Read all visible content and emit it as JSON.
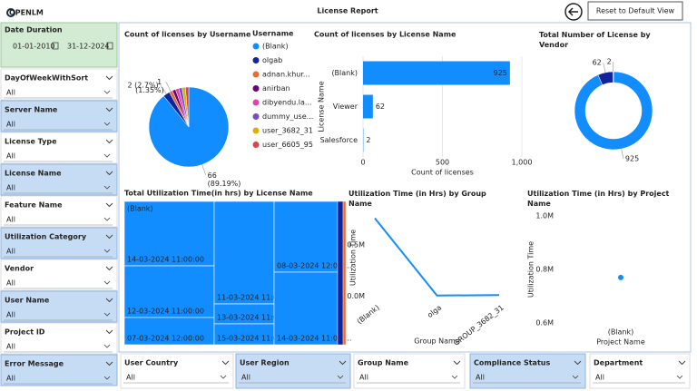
{
  "header": {
    "logo": "OPENLM",
    "title": "License Report",
    "button": "Reset to Default View"
  },
  "date_filter": {
    "title": "Date Duration",
    "from": "01-01-2010",
    "to": "31-12-2024"
  },
  "filters": [
    {
      "title": "DayOfWeekWithSort",
      "value": "All",
      "highlight": false
    },
    {
      "title": "Server Name",
      "value": "All",
      "highlight": true
    },
    {
      "title": "License Type",
      "value": "All",
      "highlight": false
    },
    {
      "title": "License Name",
      "value": "All",
      "highlight": true
    },
    {
      "title": "Feature Name",
      "value": "All",
      "highlight": false
    },
    {
      "title": "Utilization Category",
      "value": "All",
      "highlight": true
    },
    {
      "title": "Vendor",
      "value": "All",
      "highlight": false
    },
    {
      "title": "User Name",
      "value": "All",
      "highlight": true
    },
    {
      "title": "Project ID",
      "value": "All",
      "highlight": false
    },
    {
      "title": "Error Message",
      "value": "All",
      "highlight": true
    }
  ],
  "bottom_filters": [
    {
      "title": "User Country",
      "value": "All",
      "highlight": false
    },
    {
      "title": "User Region",
      "value": "All",
      "highlight": true
    },
    {
      "title": "Group Name",
      "value": "All",
      "highlight": false
    },
    {
      "title": "Compliance Status",
      "value": "All",
      "highlight": true
    },
    {
      "title": "Department",
      "value": "All",
      "highlight": false
    }
  ],
  "chart_data": [
    {
      "type": "pie",
      "title": "Count of licenses by Username",
      "legend_title": "Username",
      "categories": [
        "(Blank)",
        "olgab",
        "adnan.khur...",
        "anirban",
        "dibyendu.la...",
        "dummy_use...",
        "user_3682_31",
        "user_6605_95"
      ],
      "values": [
        66,
        2,
        1,
        1,
        1,
        1,
        1,
        1
      ],
      "value_labels": [
        "66 (89.19%)",
        "2 (2.7%)",
        "1 (1.35%)",
        null,
        null,
        null,
        null,
        null
      ],
      "colors": [
        "#118DFF",
        "#12239E",
        "#E66C37",
        "#6B007B",
        "#E044A7",
        "#744EC2",
        "#D9B300",
        "#D64550"
      ]
    },
    {
      "type": "bar",
      "title": "Count of licenses by License Name",
      "xlabel": "Count of licenses",
      "ylabel": "License Name",
      "categories": [
        "(Blank)",
        "Viewer",
        "Salesforce"
      ],
      "values": [
        925,
        62,
        2
      ],
      "color": "#118DFF",
      "xlim": [
        0,
        1000
      ],
      "xticks": [
        0,
        500,
        {
          "value": 1000,
          "label": "1,000"
        }
      ],
      "grid": true
    },
    {
      "type": "donut",
      "title": "Total Number of License by Vendor",
      "categories": [
        null,
        null,
        null
      ],
      "values": [
        925,
        62,
        2
      ],
      "colors": [
        "#118DFF",
        "#12239E",
        "#E66C37"
      ]
    },
    {
      "type": "treemap",
      "title": "Total Utilization Time(in hrs) by License Name",
      "groups": [
        {
          "name": "(Blank)",
          "color": "#118DFF",
          "tiles": [
            {
              "label": "14-03-2024 11:00:00",
              "value": 703
            },
            {
              "label": "12-03-2024 11:00:00",
              "value": 564
            },
            {
              "label": "07-03-2024 12:00:00",
              "value": 297
            },
            {
              "label": "11-03-2024 11:00:...",
              "value": 746
            },
            {
              "label": "13-03-2024 11:00:00",
              "value": 145
            },
            {
              "label": "15-03-2024 11:00:...",
              "value": 152
            },
            {
              "label": "08-03-2024 12:00:...",
              "value": 546
            },
            {
              "label": "14-03-2024 11:00:...",
              "value": 560
            }
          ]
        },
        {
          "name": null,
          "color": "#12239E",
          "value": 95
        },
        {
          "name": null,
          "color": "#E66C37",
          "value": 47
        }
      ]
    },
    {
      "type": "line",
      "title": "Utilization Time (in Hrs) by Group Name",
      "xlabel": "Group Name",
      "ylabel": "Utilization Time",
      "categories": [
        "(Blank)",
        "olga",
        "GROUP_3682_31"
      ],
      "values": [
        760000,
        5000,
        10000
      ],
      "color": "#118DFF",
      "ylim": [
        -50000,
        800000
      ],
      "yticks": [
        {
          "value": 0,
          "label": "0.0M"
        },
        {
          "value": 500000,
          "label": "0.5M"
        }
      ],
      "markers": false
    },
    {
      "type": "line",
      "title": "Utilization Time (in Hrs) by Project Name",
      "xlabel": "Project Name",
      "ylabel": "Utilization Time",
      "categories": [
        "(Blank)"
      ],
      "values": [
        770000
      ],
      "color": "#118DFF",
      "ylim": [
        580000,
        1020000
      ],
      "yticks": [
        {
          "value": 600000,
          "label": "0.6M"
        },
        {
          "value": 800000,
          "label": "0.8M"
        },
        {
          "value": 1000000,
          "label": "1.0M"
        }
      ],
      "markers": true
    }
  ]
}
